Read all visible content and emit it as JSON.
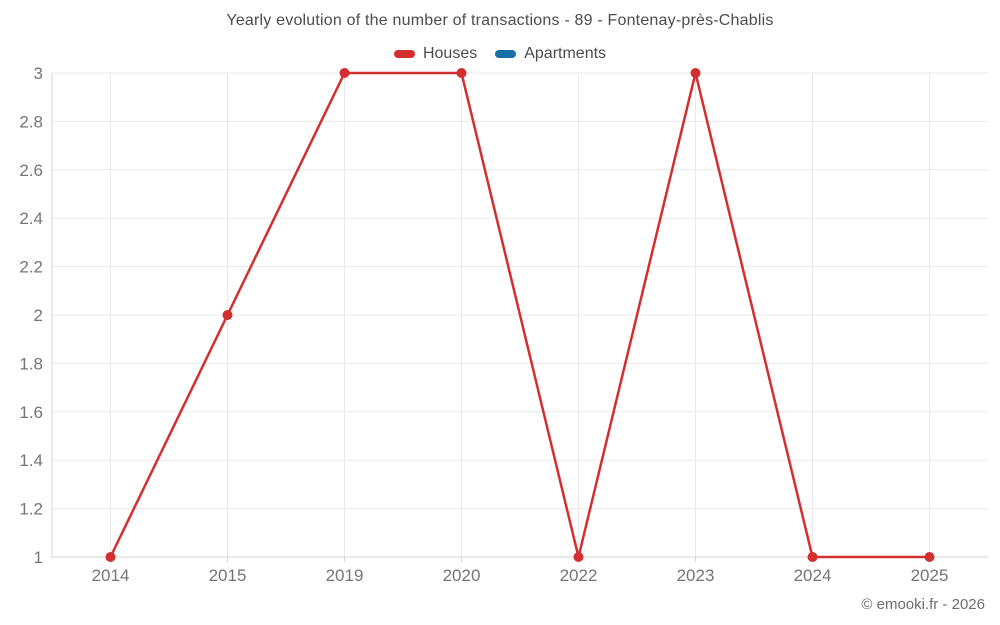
{
  "title": "Yearly evolution of the number of transactions - 89 - Fontenay-près-Chablis",
  "legend": [
    {
      "label": "Houses",
      "color": "#d32f2f"
    },
    {
      "label": "Apartments",
      "color": "#1470a6"
    }
  ],
  "copyright": "© emooki.fr - 2026",
  "chart_data": {
    "type": "line",
    "title": "Yearly evolution of the number of transactions - 89 - Fontenay-près-Chablis",
    "categories": [
      "2014",
      "2015",
      "2019",
      "2020",
      "2022",
      "2023",
      "2024",
      "2025"
    ],
    "series": [
      {
        "name": "Houses",
        "color": "#d32f2f",
        "values": [
          1,
          2,
          3,
          3,
          1,
          3,
          1,
          1
        ]
      },
      {
        "name": "Apartments",
        "color": "#1470a6",
        "values": []
      }
    ],
    "xlabel": "",
    "ylabel": "",
    "ylim": [
      1,
      3
    ],
    "ytick_step": 0.2,
    "ytick_labels": [
      "1",
      "1.2",
      "1.4",
      "1.6",
      "1.8",
      "2",
      "2.2",
      "2.4",
      "2.6",
      "2.8",
      "3"
    ],
    "grid": true,
    "legend_position": "top",
    "colors": {
      "grid_line": "#e9e9e9",
      "axis_line": "#d6d6d6",
      "axis_label": "#757575"
    }
  }
}
